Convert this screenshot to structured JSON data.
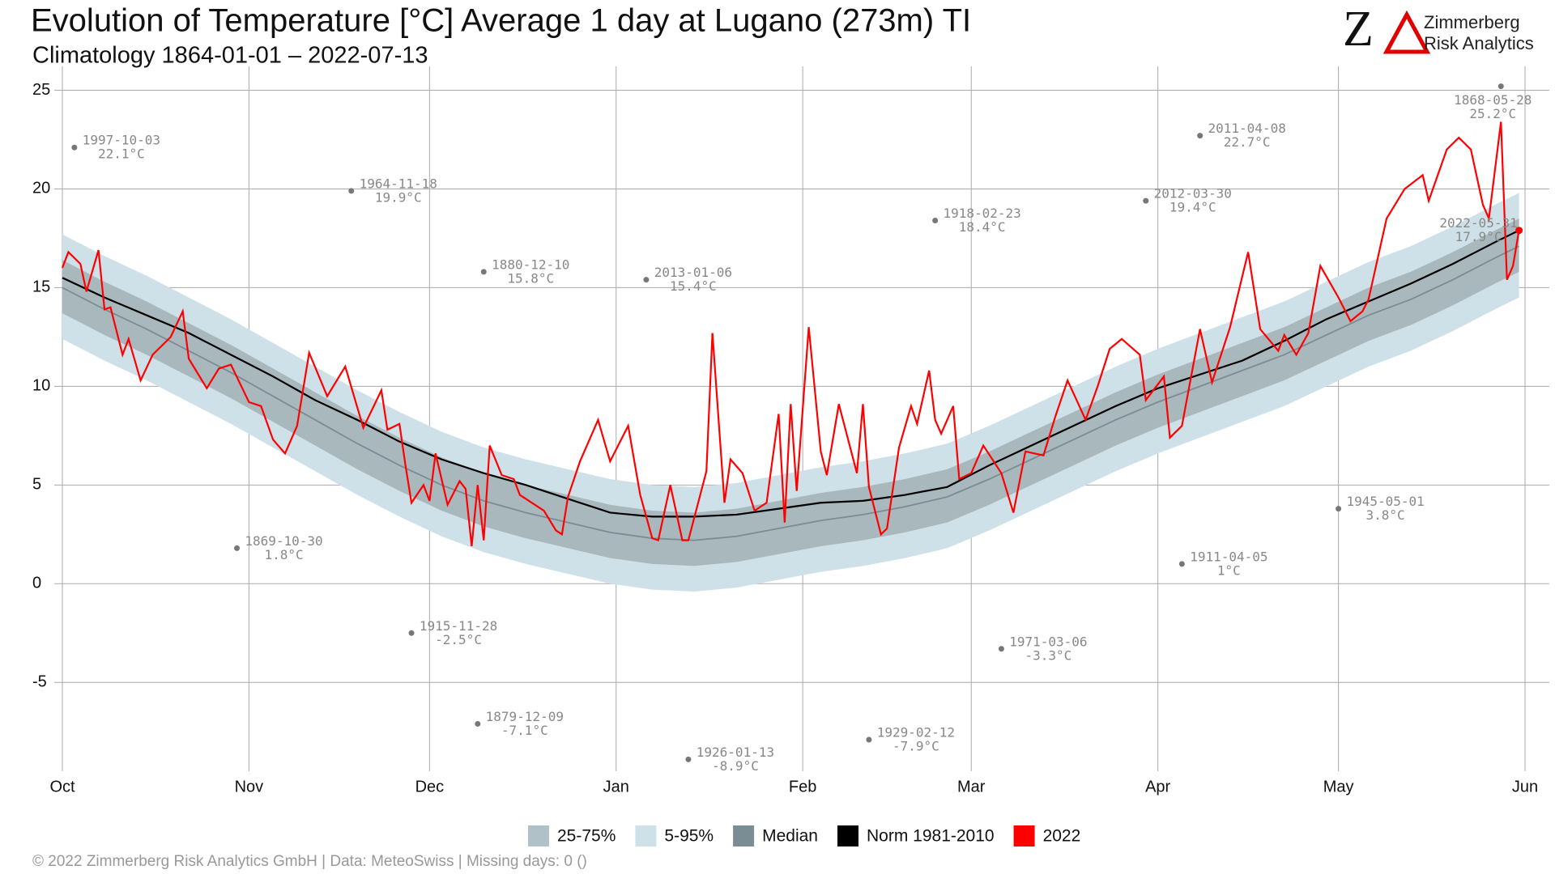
{
  "chart_data": {
    "type": "line",
    "title": "Evolution of Temperature [°C] Average 1 day at Lugano (273m) TI",
    "subtitle": "Climatology 1864-01-01 – 2022-07-13",
    "footer": "©  2022 Zimmerberg Risk Analytics GmbH | Data: MeteoSwiss | Missing days: 0 ()",
    "logo": {
      "mark": "Z",
      "line1": "Zimmerberg",
      "line2": "Risk Analytics"
    },
    "xlim": [
      0,
      243
    ],
    "xticks": [
      {
        "value": 0,
        "label": "Oct"
      },
      {
        "value": 31,
        "label": "Nov"
      },
      {
        "value": 61,
        "label": "Dec"
      },
      {
        "value": 92,
        "label": "Jan"
      },
      {
        "value": 123,
        "label": "Feb"
      },
      {
        "value": 151,
        "label": "Mar"
      },
      {
        "value": 182,
        "label": "Apr"
      },
      {
        "value": 212,
        "label": "May"
      },
      {
        "value": 243,
        "label": "Jun"
      }
    ],
    "ylim": [
      -9.5,
      25.8
    ],
    "yticks": [
      -5,
      0,
      5,
      10,
      15,
      20,
      25
    ],
    "grid": true,
    "x": [
      0,
      7,
      14,
      21,
      28,
      35,
      42,
      49,
      56,
      63,
      70,
      77,
      84,
      91,
      98,
      105,
      112,
      119,
      126,
      133,
      140,
      147,
      154,
      161,
      168,
      175,
      182,
      189,
      196,
      203,
      210,
      217,
      224,
      231,
      238,
      242
    ],
    "series": [
      {
        "name": "25-75%",
        "kind": "band",
        "color": "#b0c1c8",
        "fill": "#a9b8bd",
        "low": [
          13.7,
          12.6,
          11.6,
          10.5,
          9.4,
          8.2,
          7.0,
          5.8,
          4.7,
          3.7,
          2.9,
          2.3,
          1.8,
          1.3,
          1.0,
          0.9,
          1.1,
          1.5,
          1.9,
          2.2,
          2.6,
          3.1,
          4.0,
          5.0,
          6.0,
          7.0,
          7.9,
          8.7,
          9.5,
          10.3,
          11.3,
          12.3,
          13.1,
          14.1,
          15.2,
          15.8
        ],
        "high": [
          16.4,
          15.3,
          14.3,
          13.2,
          12.1,
          10.9,
          9.7,
          8.5,
          7.4,
          6.4,
          5.6,
          5.0,
          4.5,
          4.0,
          3.7,
          3.6,
          3.8,
          4.2,
          4.6,
          4.9,
          5.3,
          5.8,
          6.7,
          7.7,
          8.7,
          9.7,
          10.6,
          11.4,
          12.2,
          13.0,
          14.0,
          15.0,
          15.8,
          16.8,
          17.9,
          18.5
        ]
      },
      {
        "name": "5-95%",
        "kind": "band",
        "color": "#cfe1e8",
        "fill": "#cfe1e8",
        "low": [
          12.4,
          11.3,
          10.3,
          9.2,
          8.1,
          6.9,
          5.7,
          4.5,
          3.4,
          2.4,
          1.6,
          1.0,
          0.5,
          0.0,
          -0.3,
          -0.4,
          -0.2,
          0.2,
          0.6,
          0.9,
          1.3,
          1.8,
          2.7,
          3.7,
          4.7,
          5.7,
          6.6,
          7.4,
          8.2,
          9.0,
          10.0,
          11.0,
          11.8,
          12.8,
          13.9,
          14.5
        ],
        "high": [
          17.7,
          16.6,
          15.6,
          14.5,
          13.4,
          12.2,
          11.0,
          9.8,
          8.7,
          7.7,
          6.9,
          6.3,
          5.8,
          5.3,
          5.0,
          4.9,
          5.1,
          5.5,
          5.9,
          6.2,
          6.6,
          7.1,
          8.0,
          9.0,
          10.0,
          11.0,
          11.9,
          12.7,
          13.5,
          14.3,
          15.3,
          16.3,
          17.1,
          18.1,
          19.2,
          19.8
        ]
      },
      {
        "name": "Median",
        "kind": "line",
        "color": "#7a8c94",
        "values": [
          15.0,
          13.9,
          12.9,
          11.8,
          10.7,
          9.5,
          8.3,
          7.1,
          6.0,
          5.0,
          4.2,
          3.6,
          3.1,
          2.6,
          2.3,
          2.2,
          2.4,
          2.8,
          3.2,
          3.5,
          3.9,
          4.4,
          5.3,
          6.3,
          7.3,
          8.3,
          9.2,
          10.0,
          10.8,
          11.6,
          12.6,
          13.6,
          14.4,
          15.4,
          16.5,
          17.1
        ]
      },
      {
        "name": "Norm 1981-2010",
        "kind": "line",
        "color": "#000000",
        "values": [
          15.5,
          14.5,
          13.6,
          12.7,
          11.6,
          10.5,
          9.3,
          8.3,
          7.2,
          6.3,
          5.6,
          5.0,
          4.3,
          3.6,
          3.4,
          3.4,
          3.5,
          3.8,
          4.1,
          4.2,
          4.5,
          4.9,
          6.0,
          7.0,
          8.0,
          9.0,
          9.9,
          10.6,
          11.3,
          12.3,
          13.4,
          14.3,
          15.2,
          16.2,
          17.3,
          17.9
        ]
      },
      {
        "name": "2022",
        "kind": "line",
        "color": "#ff0000",
        "x": [
          0,
          1,
          3,
          4,
          6,
          7,
          8,
          10,
          11,
          13,
          15,
          18,
          20,
          21,
          24,
          26,
          28,
          31,
          33,
          35,
          37,
          39,
          41,
          44,
          47,
          50,
          53,
          54,
          56,
          57,
          58,
          60,
          61,
          62,
          64,
          66,
          67,
          68,
          69,
          70,
          71,
          73,
          75,
          76,
          80,
          82,
          83,
          84,
          86,
          89,
          91,
          94,
          96,
          98,
          99,
          101,
          103,
          104,
          107,
          108,
          110,
          111,
          113,
          115,
          117,
          119,
          120,
          121,
          122,
          124,
          126,
          127,
          129,
          132,
          133,
          134,
          136,
          137,
          139,
          141,
          142,
          144,
          145,
          146,
          148,
          149,
          151,
          153,
          156,
          158,
          160,
          163,
          165,
          167,
          170,
          172,
          174,
          176,
          179,
          180,
          183,
          184,
          186,
          189,
          191,
          194,
          197,
          199,
          202,
          203,
          205,
          207,
          209,
          212,
          214,
          216,
          217,
          220,
          223,
          226,
          227,
          230,
          232,
          234,
          236,
          237,
          239,
          240,
          241,
          242
        ],
        "values": [
          16.0,
          16.8,
          16.2,
          14.8,
          16.9,
          13.9,
          14.0,
          11.6,
          12.4,
          10.3,
          11.6,
          12.5,
          13.8,
          11.4,
          9.9,
          10.9,
          11.1,
          9.2,
          9.0,
          7.3,
          6.6,
          8.0,
          11.7,
          9.5,
          11.0,
          7.9,
          9.8,
          7.8,
          8.1,
          6.0,
          4.1,
          5.0,
          4.2,
          6.6,
          4.0,
          5.2,
          4.8,
          1.9,
          5.0,
          2.2,
          7.0,
          5.5,
          5.3,
          4.5,
          3.7,
          2.7,
          2.5,
          4.4,
          6.2,
          8.3,
          6.2,
          8.0,
          4.5,
          2.3,
          2.2,
          5.0,
          2.2,
          2.2,
          5.7,
          12.7,
          4.1,
          6.3,
          5.6,
          3.7,
          4.1,
          8.6,
          3.1,
          9.1,
          4.7,
          13.0,
          6.7,
          5.5,
          9.1,
          5.6,
          9.1,
          4.9,
          2.5,
          2.8,
          6.9,
          9.0,
          8.1,
          10.8,
          8.3,
          7.6,
          9.0,
          5.3,
          5.6,
          7.0,
          5.6,
          3.6,
          6.7,
          6.5,
          8.5,
          10.3,
          8.3,
          10.0,
          11.9,
          12.4,
          11.6,
          9.3,
          10.5,
          7.4,
          8.0,
          12.9,
          10.2,
          13.0,
          16.8,
          12.9,
          11.8,
          12.6,
          11.6,
          12.7,
          16.1,
          14.5,
          13.3,
          13.8,
          14.4,
          18.5,
          20.0,
          20.7,
          19.4,
          22.0,
          22.6,
          22.0,
          19.2,
          18.5,
          23.4,
          15.4,
          16.1,
          17.9
        ]
      }
    ],
    "annotations": [
      {
        "x": 2,
        "date": "1997-10-03",
        "value": 22.1,
        "value_label": "22.1°C"
      },
      {
        "x": 29,
        "date": "1869-10-30",
        "value": 1.8,
        "value_label": "1.8°C"
      },
      {
        "x": 48,
        "date": "1964-11-18",
        "value": 19.9,
        "value_label": "19.9°C"
      },
      {
        "x": 58,
        "date": "1915-11-28",
        "value": -2.5,
        "value_label": "-2.5°C"
      },
      {
        "x": 69,
        "date": "1879-12-09",
        "value": -7.1,
        "value_label": "-7.1°C"
      },
      {
        "x": 70,
        "date": "1880-12-10",
        "value": 15.8,
        "value_label": "15.8°C"
      },
      {
        "x": 97,
        "date": "2013-01-06",
        "value": 15.4,
        "value_label": "15.4°C"
      },
      {
        "x": 104,
        "date": "1926-01-13",
        "value": -8.9,
        "value_label": "-8.9°C"
      },
      {
        "x": 134,
        "date": "1929-02-12",
        "value": -7.9,
        "value_label": "-7.9°C"
      },
      {
        "x": 145,
        "date": "1918-02-23",
        "value": 18.4,
        "value_label": "18.4°C"
      },
      {
        "x": 156,
        "date": "1971-03-06",
        "value": -3.3,
        "value_label": "-3.3°C"
      },
      {
        "x": 180,
        "date": "2012-03-30",
        "value": 19.4,
        "value_label": "19.4°C"
      },
      {
        "x": 186,
        "date": "1911-04-05",
        "value": 1,
        "value_label": "1°C"
      },
      {
        "x": 189,
        "date": "2011-04-08",
        "value": 22.7,
        "value_label": "22.7°C"
      },
      {
        "x": 212,
        "date": "1945-05-01",
        "value": 3.8,
        "value_label": "3.8°C"
      },
      {
        "x": 239,
        "date": "1868-05-28",
        "value": 25.2,
        "value_label": "25.2°C"
      },
      {
        "x": 242,
        "date": "2022-05-31",
        "value": 17.9,
        "value_label": "17.9°C",
        "color": "#ff0000"
      }
    ]
  }
}
